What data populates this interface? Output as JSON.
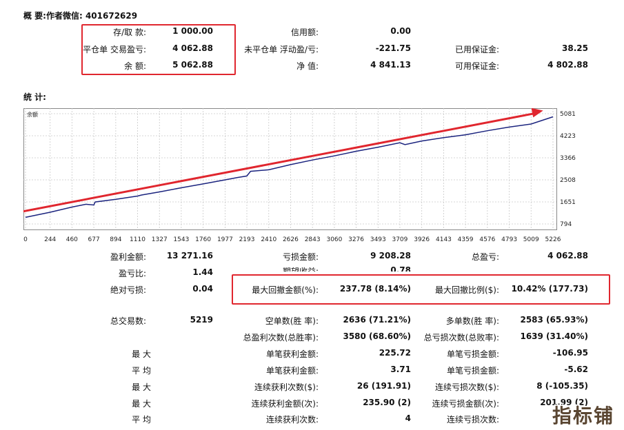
{
  "summary": {
    "title": "概 要:作者微信: 401672629",
    "deposit_label": "存/取 款:",
    "deposit_value": "1 000.00",
    "closed_pl_label": "平仓单 交易盈亏:",
    "closed_pl_value": "4 062.88",
    "balance_label": "余 额:",
    "balance_value": "5 062.88",
    "credit_label": "信用额:",
    "credit_value": "0.00",
    "floating_pl_label": "未平仓单 浮动盈/亏:",
    "floating_pl_value": "-221.75",
    "equity_label": "净 值:",
    "equity_value": "4 841.13",
    "margin_label": "已用保证金:",
    "margin_value": "38.25",
    "free_margin_label": "可用保证金:",
    "free_margin_value": "4 802.88"
  },
  "statistics": {
    "title": "统 计:",
    "gross_profit_label": "盈利金额:",
    "gross_profit_value": "13 271.16",
    "gross_loss_label": "亏损金额:",
    "gross_loss_value": "9 208.28",
    "total_profit_label": "总盈亏:",
    "total_profit_value": "4 062.88",
    "profit_factor_label": "盈亏比:",
    "profit_factor_value": "1.44",
    "expected_payoff_label": "期望收益:",
    "expected_payoff_value": "0.78",
    "abs_dd_label": "绝对亏损:",
    "abs_dd_value": "0.04",
    "max_dd_label": "最大回撤金额(%):",
    "max_dd_value": "237.78 (8.14%)",
    "rel_dd_label": "最大回撤比例($):",
    "rel_dd_value": "10.42% (177.73)",
    "total_trades_label": "总交易数:",
    "total_trades_value": "5219",
    "short_label": "空单数(胜 率):",
    "short_value": "2636 (71.21%)",
    "long_label": "多单数(胜 率):",
    "long_value": "2583 (65.93%)",
    "win_trades_label": "总盈利次数(总胜率):",
    "win_trades_value": "3580 (68.60%)",
    "loss_trades_label": "总亏损次数(总败率):",
    "loss_trades_value": "1639 (31.40%)",
    "max_label": "最 大",
    "max_win_label": "单笔获利金额:",
    "max_win_value": "225.72",
    "max_loss_label": "单笔亏损金额:",
    "max_loss_value": "-106.95",
    "avg_label": "平 均",
    "avg_win_label": "单笔获利金额:",
    "avg_win_value": "3.71",
    "avg_loss_label": "单笔亏损金额:",
    "avg_loss_value": "-5.62",
    "max2_label": "最 大",
    "cons_wins_label": "连续获利次数($):",
    "cons_wins_value": "26 (191.91)",
    "cons_losses_label": "连续亏损次数($):",
    "cons_losses_value": "8 (-105.35)",
    "max3_label": "最 大",
    "cons_profit_label": "连续获利金额(次):",
    "cons_profit_value": "235.90 (2)",
    "cons_loss_label": "连续亏损金额(次):",
    "cons_loss_value": "201.99 (2)",
    "avg2_label": "平 均",
    "avg_cons_wins_label": "连续获利次数:",
    "avg_cons_wins_value": "4",
    "avg_cons_losses_label": "连续亏损次数:"
  },
  "watermark": "指标铺",
  "colors": {
    "highlight": "#e0262e",
    "curve": "#1a237e",
    "arrow": "#e0262e",
    "grid": "#c8c8c8"
  },
  "chart_data": {
    "type": "line",
    "title": "",
    "legend_label": "余额",
    "xlabel": "",
    "ylabel": "",
    "x_ticks": [
      "0",
      "244",
      "460",
      "677",
      "894",
      "1110",
      "1327",
      "1543",
      "1760",
      "1977",
      "2193",
      "2410",
      "2626",
      "2843",
      "3060",
      "3276",
      "3493",
      "3709",
      "3926",
      "4143",
      "4359",
      "4576",
      "4793",
      "5009",
      "5226"
    ],
    "y_ticks": [
      "794",
      "1651",
      "2508",
      "3366",
      "4223",
      "5081"
    ],
    "xlim": [
      0,
      5226
    ],
    "ylim": [
      794,
      5081
    ],
    "grid": true,
    "series": [
      {
        "x": [
          0,
          244,
          460,
          600,
          677,
          690,
          894,
          1110,
          1150,
          1327,
          1543,
          1760,
          1977,
          2100,
          2193,
          2230,
          2410,
          2626,
          2843,
          3060,
          3276,
          3493,
          3709,
          3760,
          3926,
          4143,
          4359,
          4576,
          4793,
          5009,
          5226
        ],
        "y": [
          1050,
          1250,
          1450,
          1560,
          1530,
          1650,
          1750,
          1880,
          1920,
          2040,
          2200,
          2350,
          2510,
          2600,
          2660,
          2840,
          2900,
          3100,
          3280,
          3440,
          3620,
          3780,
          3950,
          3880,
          4020,
          4150,
          4260,
          4420,
          4560,
          4680,
          4960
        ]
      }
    ],
    "annotation": "red trend arrow across chart"
  }
}
